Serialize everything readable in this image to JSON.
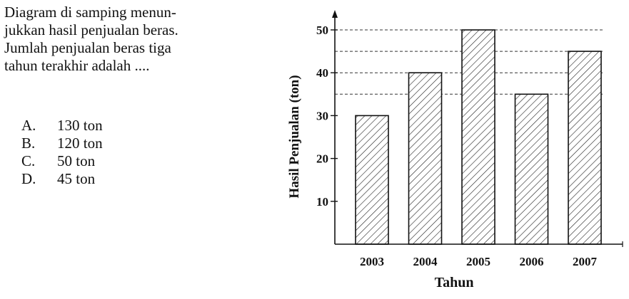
{
  "question": {
    "text": "Diagram di samping menunjukkan hasil penjualan beras. Jumlah penjualan beras tiga tahun terakhir adalah ....",
    "lines": [
      "Diagram di samping menun-",
      "jukkan hasil penjualan beras.",
      "Jumlah penjualan beras tiga",
      "tahun terakhir adalah ...."
    ]
  },
  "options": [
    {
      "letter": "A.",
      "text": "130 ton"
    },
    {
      "letter": "B.",
      "text": "120 ton"
    },
    {
      "letter": "C.",
      "text": "50 ton"
    },
    {
      "letter": "D.",
      "text": "45 ton"
    }
  ],
  "chart_data": {
    "type": "bar",
    "categories": [
      "2003",
      "2004",
      "2005",
      "2006",
      "2007"
    ],
    "values": [
      30,
      40,
      50,
      35,
      45
    ],
    "title": "",
    "xlabel": "Tahun",
    "ylabel": "Hasil Penjualan (ton)",
    "ylim": [
      0,
      50
    ],
    "yticks": [
      10,
      20,
      30,
      40,
      50
    ],
    "reference_lines": [
      50,
      45,
      40,
      35
    ],
    "bar_pattern": "diagonal-hatch",
    "grid": false,
    "colors": {
      "bar_fill": "#ffffff",
      "hatch": "#222222",
      "axis": "#111111"
    }
  }
}
